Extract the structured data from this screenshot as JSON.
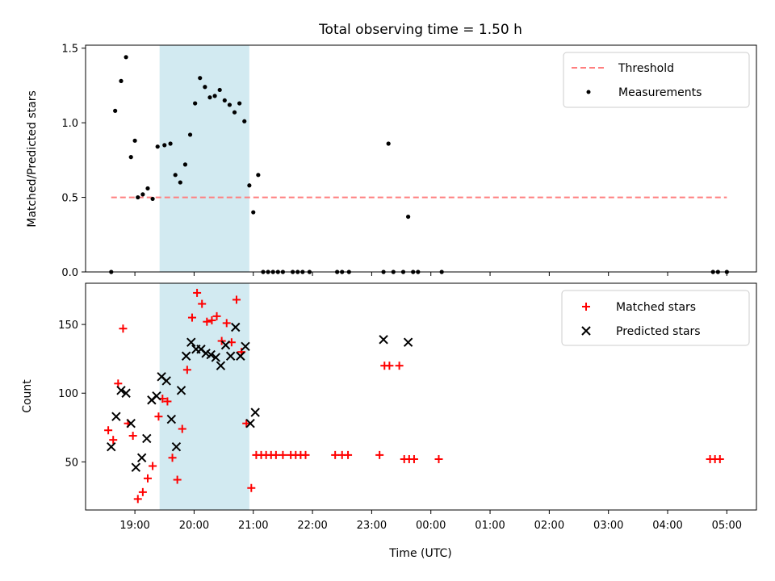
{
  "chart_data": [
    {
      "type": "scatter",
      "title": "Total observing time = 1.50 h",
      "ylabel": "Matched/Predicted stars",
      "xlabel": "",
      "ylim": [
        0,
        1.52
      ],
      "yticks": [
        "0.0",
        "0.5",
        "1.0",
        "1.5"
      ],
      "ytick_values": [
        0,
        0.5,
        1.0,
        1.5
      ],
      "shaded_span": [
        "19:25",
        "20:56"
      ],
      "shaded_color": "#add8e6",
      "legend": {
        "placement": "top-right",
        "entries": [
          "Threshold",
          "Measurements"
        ]
      },
      "threshold": {
        "name": "Threshold",
        "y": 0.5,
        "x": [
          "18:36",
          "05:00"
        ],
        "color": "#ff7f7f",
        "style": "dashed"
      },
      "series": [
        {
          "name": "Measurements",
          "color": "#000000",
          "marker": "dot",
          "x": [
            "18:36",
            "18:40",
            "18:46",
            "18:51",
            "18:56",
            "19:00",
            "19:03",
            "19:08",
            "19:13",
            "19:18",
            "19:23",
            "19:30",
            "19:36",
            "19:41",
            "19:46",
            "19:51",
            "19:56",
            "20:01",
            "20:06",
            "20:11",
            "20:16",
            "20:21",
            "20:26",
            "20:31",
            "20:36",
            "20:41",
            "20:46",
            "20:51",
            "20:56",
            "21:00",
            "21:05",
            "21:10",
            "21:15",
            "21:20",
            "21:25",
            "21:30",
            "21:40",
            "21:45",
            "21:50",
            "21:57",
            "22:25",
            "22:30",
            "22:37",
            "23:12",
            "23:17",
            "23:22",
            "23:32",
            "23:37",
            "23:42",
            "23:47",
            "00:11",
            "04:46",
            "04:51",
            "05:00"
          ],
          "y": [
            0.0,
            1.08,
            1.28,
            1.44,
            0.77,
            0.88,
            0.5,
            0.52,
            0.56,
            0.49,
            0.84,
            0.85,
            0.86,
            0.65,
            0.6,
            0.72,
            0.92,
            1.13,
            1.3,
            1.24,
            1.17,
            1.18,
            1.22,
            1.15,
            1.12,
            1.07,
            1.13,
            1.01,
            0.58,
            0.4,
            0.65,
            0.0,
            0.0,
            0.0,
            0.0,
            0.0,
            0.0,
            0.0,
            0.0,
            0.0,
            0.0,
            0.0,
            0.0,
            0.0,
            0.86,
            0.0,
            0.0,
            0.37,
            0.0,
            0.0,
            0.0,
            0.0,
            0.0,
            0.0
          ]
        }
      ]
    },
    {
      "type": "scatter",
      "title": "",
      "ylabel": "Count",
      "xlabel": "Time (UTC)",
      "ylim": [
        15,
        180
      ],
      "yticks": [
        "50",
        "100",
        "150"
      ],
      "ytick_values": [
        50,
        100,
        150
      ],
      "xlim": [
        "18:10",
        "05:30"
      ],
      "xticks": [
        "19:00",
        "20:00",
        "21:00",
        "22:00",
        "23:00",
        "00:00",
        "01:00",
        "02:00",
        "03:00",
        "04:00",
        "05:00"
      ],
      "shaded_span": [
        "19:25",
        "20:56"
      ],
      "shaded_color": "#add8e6",
      "legend": {
        "placement": "top-right",
        "entries": [
          "Matched stars",
          "Predicted stars"
        ]
      },
      "series": [
        {
          "name": "Matched stars",
          "color": "#ff0000",
          "marker": "plus",
          "x": [
            "18:33",
            "18:38",
            "18:43",
            "18:48",
            "18:53",
            "18:58",
            "19:03",
            "19:08",
            "19:13",
            "19:18",
            "19:24",
            "19:28",
            "19:33",
            "19:38",
            "19:43",
            "19:48",
            "19:53",
            "19:58",
            "20:03",
            "20:08",
            "20:13",
            "20:18",
            "20:23",
            "20:28",
            "20:33",
            "20:38",
            "20:43",
            "20:48",
            "20:53",
            "20:58",
            "21:03",
            "21:08",
            "21:13",
            "21:18",
            "21:23",
            "21:30",
            "21:38",
            "21:43",
            "21:48",
            "21:53",
            "22:23",
            "22:30",
            "22:36",
            "23:08",
            "23:13",
            "23:18",
            "23:28",
            "23:33",
            "23:38",
            "23:43",
            "00:08",
            "04:43",
            "04:48",
            "04:53"
          ],
          "y": [
            73,
            66,
            107,
            147,
            78,
            69,
            23,
            28,
            38,
            47,
            83,
            96,
            94,
            53,
            37,
            74,
            117,
            155,
            173,
            165,
            152,
            153,
            156,
            138,
            151,
            137,
            168,
            130,
            78,
            31,
            55,
            55,
            55,
            55,
            55,
            55,
            55,
            55,
            55,
            55,
            55,
            55,
            55,
            55,
            120,
            120,
            120,
            52,
            52,
            52,
            52,
            52,
            52,
            52
          ]
        },
        {
          "name": "Predicted stars",
          "color": "#000000",
          "marker": "x",
          "x": [
            "18:36",
            "18:41",
            "18:46",
            "18:51",
            "18:56",
            "19:01",
            "19:07",
            "19:12",
            "19:17",
            "19:22",
            "19:27",
            "19:32",
            "19:37",
            "19:42",
            "19:47",
            "19:52",
            "19:57",
            "20:02",
            "20:07",
            "20:12",
            "20:17",
            "20:22",
            "20:27",
            "20:32",
            "20:37",
            "20:42",
            "20:47",
            "20:52",
            "20:57",
            "21:02",
            "23:12",
            "23:37"
          ],
          "y": [
            61,
            83,
            102,
            100,
            78,
            46,
            53,
            67,
            95,
            98,
            112,
            109,
            81,
            61,
            102,
            127,
            137,
            132,
            132,
            129,
            128,
            126,
            120,
            135,
            127,
            148,
            127,
            134,
            78,
            86,
            139,
            137
          ]
        }
      ]
    }
  ]
}
